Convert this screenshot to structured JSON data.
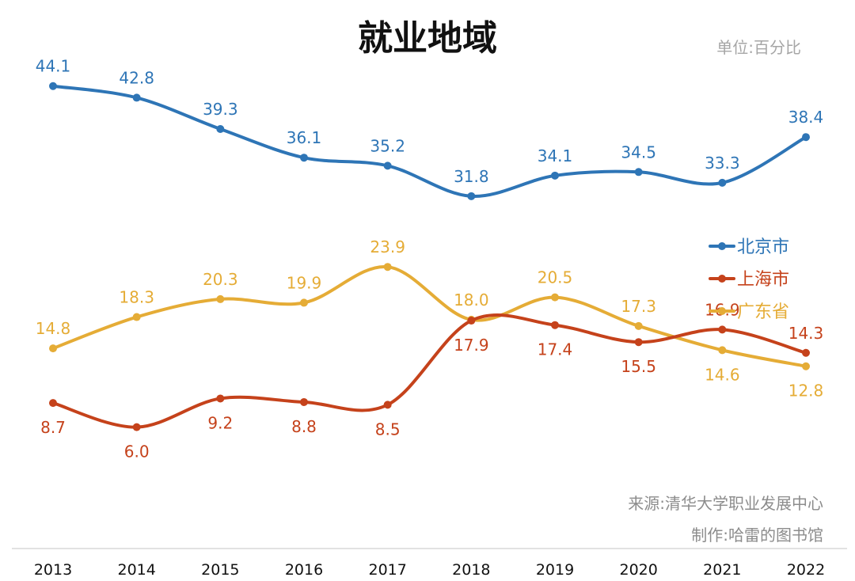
{
  "chart_data": {
    "type": "line",
    "title": "就业地域",
    "unit_label": "单位:百分比",
    "source_note": "来源:清华大学职业发展中心",
    "maker_note": "制作:哈雷的图书馆",
    "x": [
      "2013",
      "2014",
      "2015",
      "2016",
      "2017",
      "2018",
      "2019",
      "2020",
      "2021",
      "2022"
    ],
    "ylim": [
      0,
      48
    ],
    "grid": false,
    "legend_position": "right",
    "series": [
      {
        "name": "北京市",
        "color": "#2e75b6",
        "values": [
          44.1,
          42.8,
          39.3,
          36.1,
          35.2,
          31.8,
          34.1,
          34.5,
          33.3,
          38.4
        ],
        "labels": [
          "44.1",
          "42.8",
          "39.3",
          "36.1",
          "35.2",
          "31.8",
          "34.1",
          "34.5",
          "33.3",
          "38.4"
        ],
        "label_side": [
          "above",
          "above",
          "above",
          "above",
          "above",
          "above",
          "above",
          "above",
          "above",
          "above"
        ]
      },
      {
        "name": "上海市",
        "color": "#c5421b",
        "values": [
          8.7,
          6.0,
          9.2,
          8.8,
          8.5,
          17.9,
          17.4,
          15.5,
          16.9,
          14.3
        ],
        "labels": [
          "8.7",
          "6.0",
          "9.2",
          "8.8",
          "8.5",
          "17.9",
          "17.4",
          "15.5",
          "16.9",
          "14.3"
        ],
        "label_side": [
          "below",
          "below",
          "below",
          "below",
          "below",
          "below",
          "below",
          "below",
          "above",
          "above"
        ]
      },
      {
        "name": "广东省",
        "color": "#e5ac36",
        "values": [
          14.8,
          18.3,
          20.3,
          19.9,
          23.9,
          18.0,
          20.5,
          17.3,
          14.6,
          12.8
        ],
        "labels": [
          "14.8",
          "18.3",
          "20.3",
          "19.9",
          "23.9",
          "18.0",
          "20.5",
          "17.3",
          "14.6",
          "12.8"
        ],
        "label_side": [
          "above",
          "above",
          "above",
          "above",
          "above",
          "above",
          "above",
          "above",
          "below",
          "below"
        ]
      }
    ]
  }
}
